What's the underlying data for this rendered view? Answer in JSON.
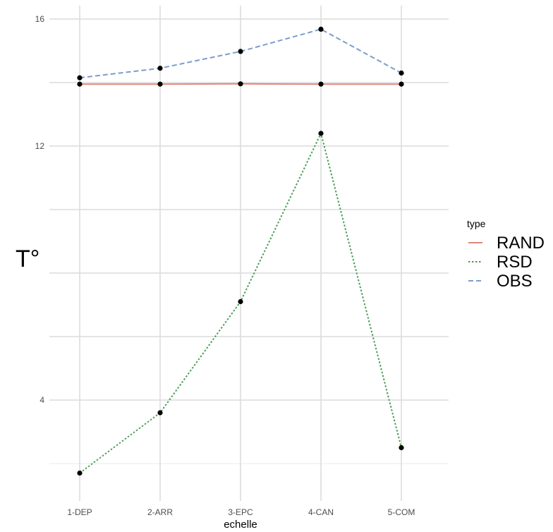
{
  "chart_data": {
    "type": "line",
    "xlabel": "echelle",
    "ylabel": "T°",
    "categories": [
      "1-DEP",
      "2-ARR",
      "3-EPC",
      "4-CAN",
      "5-COM"
    ],
    "ylim": [
      1.6,
      16.5
    ],
    "y_ticks": [
      4,
      12,
      16
    ],
    "grid": true,
    "legend": {
      "title": "type",
      "position": "right"
    },
    "series": [
      {
        "name": "RAND",
        "values": [
          13.95,
          13.95,
          13.96,
          13.95,
          13.95
        ],
        "color": "#e0857a",
        "dash": "solid"
      },
      {
        "name": "RSD",
        "values": [
          1.7,
          3.6,
          7.1,
          12.4,
          2.5
        ],
        "color": "#4a9e57",
        "dash": "dotted"
      },
      {
        "name": "OBS",
        "values": [
          14.15,
          14.45,
          14.98,
          15.68,
          14.3
        ],
        "color": "#7d9dcb",
        "dash": "dashed"
      }
    ],
    "point_color": "#000000"
  }
}
